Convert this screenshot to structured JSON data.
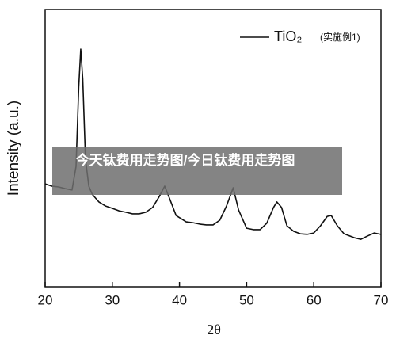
{
  "chart_data": {
    "type": "line",
    "x_label": "2θ",
    "y_label": "Intensity (a.u.)",
    "annotation": "(实施例1)",
    "x": [
      20,
      21,
      22,
      23,
      24,
      24.6,
      25,
      25.3,
      25.6,
      26,
      26.5,
      27,
      28,
      29,
      30,
      31,
      32,
      33,
      34,
      35,
      36,
      37,
      37.8,
      38.5,
      39.5,
      41,
      42,
      43,
      44,
      45,
      46,
      47,
      48,
      48.8,
      50,
      51,
      52,
      53,
      54,
      54.5,
      55.2,
      56,
      57,
      58,
      59,
      60,
      61,
      62,
      62.6,
      63.5,
      64.5,
      66,
      67,
      68,
      69,
      70
    ],
    "series": [
      {
        "name": "TiO₂",
        "color": "#111111",
        "values": [
          37.1,
          36.3,
          36,
          35.4,
          34.9,
          43.4,
          72,
          85.7,
          74.9,
          46.3,
          36.3,
          33.4,
          30.6,
          29.1,
          28.3,
          27.4,
          26.9,
          26.3,
          26.3,
          26.9,
          28.6,
          32.6,
          36.3,
          32,
          25.7,
          23.4,
          23.1,
          22.6,
          22.3,
          22.3,
          24,
          29.1,
          35.7,
          27.7,
          21.1,
          20.6,
          20.6,
          22.9,
          28.6,
          30.6,
          28.6,
          22,
          20,
          19.1,
          18.9,
          19.4,
          22,
          25.4,
          25.7,
          22,
          19.1,
          17.7,
          17.1,
          18.3,
          19.4,
          18.9
        ]
      }
    ],
    "xlim": [
      20,
      70
    ],
    "xticks": [
      20,
      30,
      40,
      50,
      60,
      70
    ],
    "ylim": [
      0,
      100
    ]
  },
  "overlay": {
    "text": "今天钛费用走势图/今日钛费用走势图"
  }
}
